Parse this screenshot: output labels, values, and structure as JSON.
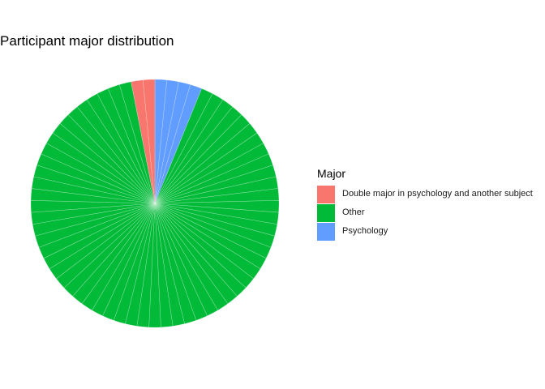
{
  "chart_data": {
    "type": "pie",
    "title": "Participant major distribution",
    "legend_title": "Major",
    "legend_position": "right",
    "slice_order": "clockwise from top",
    "slices": [
      {
        "label": "Psychology",
        "count": 4,
        "color": "#619CFF"
      },
      {
        "label": "Other",
        "count": 59,
        "color": "#00BA38"
      },
      {
        "label": "Double major in psychology and another subject",
        "count": 2,
        "color": "#F8766D"
      }
    ],
    "legend": [
      {
        "label": "Double major in psychology and another subject",
        "color": "#F8766D"
      },
      {
        "label": "Other",
        "color": "#00BA38"
      },
      {
        "label": "Psychology",
        "color": "#619CFF"
      }
    ]
  }
}
